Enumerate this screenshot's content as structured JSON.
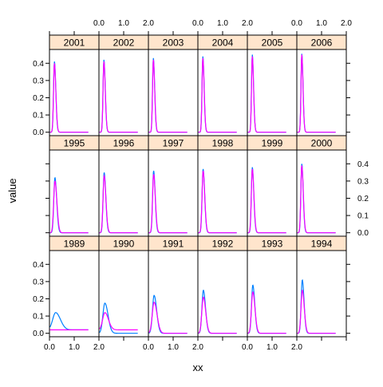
{
  "chart_data": {
    "type": "line",
    "layout": "lattice-panels",
    "xlabel": "xx",
    "ylabel": "value",
    "xlim": [
      0,
      2.0
    ],
    "ylim": [
      -0.02,
      0.48
    ],
    "x_ticks": [
      "0.0",
      "1.0",
      "2.0"
    ],
    "y_ticks": [
      "0.0",
      "0.1",
      "0.2",
      "0.3",
      "0.4"
    ],
    "strip_color": "#ffe5cc",
    "series_colors": [
      "#0080ff",
      "#ff00ff"
    ],
    "panel_rows": [
      [
        "2001",
        "2002",
        "2003",
        "2004",
        "2005",
        "2006"
      ],
      [
        "1995",
        "1996",
        "1997",
        "1998",
        "1999",
        "2000"
      ],
      [
        "1989",
        "1990",
        "1991",
        "1992",
        "1993",
        "1994"
      ]
    ],
    "panels": [
      {
        "year": "1989",
        "series": [
          {
            "peak_x": 0.25,
            "peak": 0.12,
            "width": 0.12,
            "base": 0.02
          },
          {
            "peak_x": 0.25,
            "peak": 0.02,
            "width": 0.1,
            "base": 0.02
          }
        ]
      },
      {
        "year": "1990",
        "series": [
          {
            "peak_x": 0.24,
            "peak": 0.175,
            "width": 0.08,
            "base": 0.0
          },
          {
            "peak_x": 0.24,
            "peak": 0.12,
            "width": 0.09,
            "base": 0.02
          }
        ]
      },
      {
        "year": "1991",
        "series": [
          {
            "peak_x": 0.23,
            "peak": 0.22,
            "width": 0.065,
            "base": 0.0
          },
          {
            "peak_x": 0.23,
            "peak": 0.18,
            "width": 0.075,
            "base": 0.0
          }
        ]
      },
      {
        "year": "1992",
        "series": [
          {
            "peak_x": 0.22,
            "peak": 0.25,
            "width": 0.055,
            "base": 0.0
          },
          {
            "peak_x": 0.22,
            "peak": 0.21,
            "width": 0.06,
            "base": 0.0
          }
        ]
      },
      {
        "year": "1993",
        "series": [
          {
            "peak_x": 0.22,
            "peak": 0.28,
            "width": 0.05,
            "base": 0.0
          },
          {
            "peak_x": 0.22,
            "peak": 0.24,
            "width": 0.055,
            "base": 0.0
          }
        ]
      },
      {
        "year": "1994",
        "series": [
          {
            "peak_x": 0.22,
            "peak": 0.31,
            "width": 0.045,
            "base": 0.0
          },
          {
            "peak_x": 0.22,
            "peak": 0.25,
            "width": 0.05,
            "base": 0.0
          }
        ]
      },
      {
        "year": "1995",
        "series": [
          {
            "peak_x": 0.22,
            "peak": 0.32,
            "width": 0.045,
            "base": 0.0
          },
          {
            "peak_x": 0.22,
            "peak": 0.3,
            "width": 0.05,
            "base": 0.0
          }
        ]
      },
      {
        "year": "1996",
        "series": [
          {
            "peak_x": 0.21,
            "peak": 0.35,
            "width": 0.042,
            "base": 0.0
          },
          {
            "peak_x": 0.21,
            "peak": 0.33,
            "width": 0.045,
            "base": 0.0
          }
        ]
      },
      {
        "year": "1997",
        "series": [
          {
            "peak_x": 0.21,
            "peak": 0.36,
            "width": 0.04,
            "base": 0.0
          },
          {
            "peak_x": 0.21,
            "peak": 0.34,
            "width": 0.043,
            "base": 0.0
          }
        ]
      },
      {
        "year": "1998",
        "series": [
          {
            "peak_x": 0.21,
            "peak": 0.37,
            "width": 0.04,
            "base": 0.0
          },
          {
            "peak_x": 0.21,
            "peak": 0.36,
            "width": 0.042,
            "base": 0.0
          }
        ]
      },
      {
        "year": "1999",
        "series": [
          {
            "peak_x": 0.2,
            "peak": 0.38,
            "width": 0.038,
            "base": 0.0
          },
          {
            "peak_x": 0.2,
            "peak": 0.37,
            "width": 0.04,
            "base": 0.0
          }
        ]
      },
      {
        "year": "2000",
        "series": [
          {
            "peak_x": 0.2,
            "peak": 0.4,
            "width": 0.036,
            "base": 0.0
          },
          {
            "peak_x": 0.2,
            "peak": 0.39,
            "width": 0.038,
            "base": 0.0
          }
        ]
      },
      {
        "year": "2001",
        "series": [
          {
            "peak_x": 0.2,
            "peak": 0.41,
            "width": 0.035,
            "base": 0.0
          },
          {
            "peak_x": 0.2,
            "peak": 0.4,
            "width": 0.036,
            "base": 0.0
          }
        ]
      },
      {
        "year": "2002",
        "series": [
          {
            "peak_x": 0.2,
            "peak": 0.42,
            "width": 0.034,
            "base": 0.0
          },
          {
            "peak_x": 0.2,
            "peak": 0.41,
            "width": 0.035,
            "base": 0.0
          }
        ]
      },
      {
        "year": "2003",
        "series": [
          {
            "peak_x": 0.2,
            "peak": 0.43,
            "width": 0.033,
            "base": 0.0
          },
          {
            "peak_x": 0.2,
            "peak": 0.42,
            "width": 0.034,
            "base": 0.0
          }
        ]
      },
      {
        "year": "2004",
        "series": [
          {
            "peak_x": 0.2,
            "peak": 0.44,
            "width": 0.032,
            "base": 0.0
          },
          {
            "peak_x": 0.2,
            "peak": 0.43,
            "width": 0.033,
            "base": 0.0
          }
        ]
      },
      {
        "year": "2005",
        "series": [
          {
            "peak_x": 0.2,
            "peak": 0.45,
            "width": 0.032,
            "base": 0.0
          },
          {
            "peak_x": 0.2,
            "peak": 0.44,
            "width": 0.032,
            "base": 0.0
          }
        ]
      },
      {
        "year": "2006",
        "series": [
          {
            "peak_x": 0.2,
            "peak": 0.455,
            "width": 0.031,
            "base": 0.0
          },
          {
            "peak_x": 0.2,
            "peak": 0.45,
            "width": 0.031,
            "base": 0.0
          }
        ]
      }
    ]
  }
}
